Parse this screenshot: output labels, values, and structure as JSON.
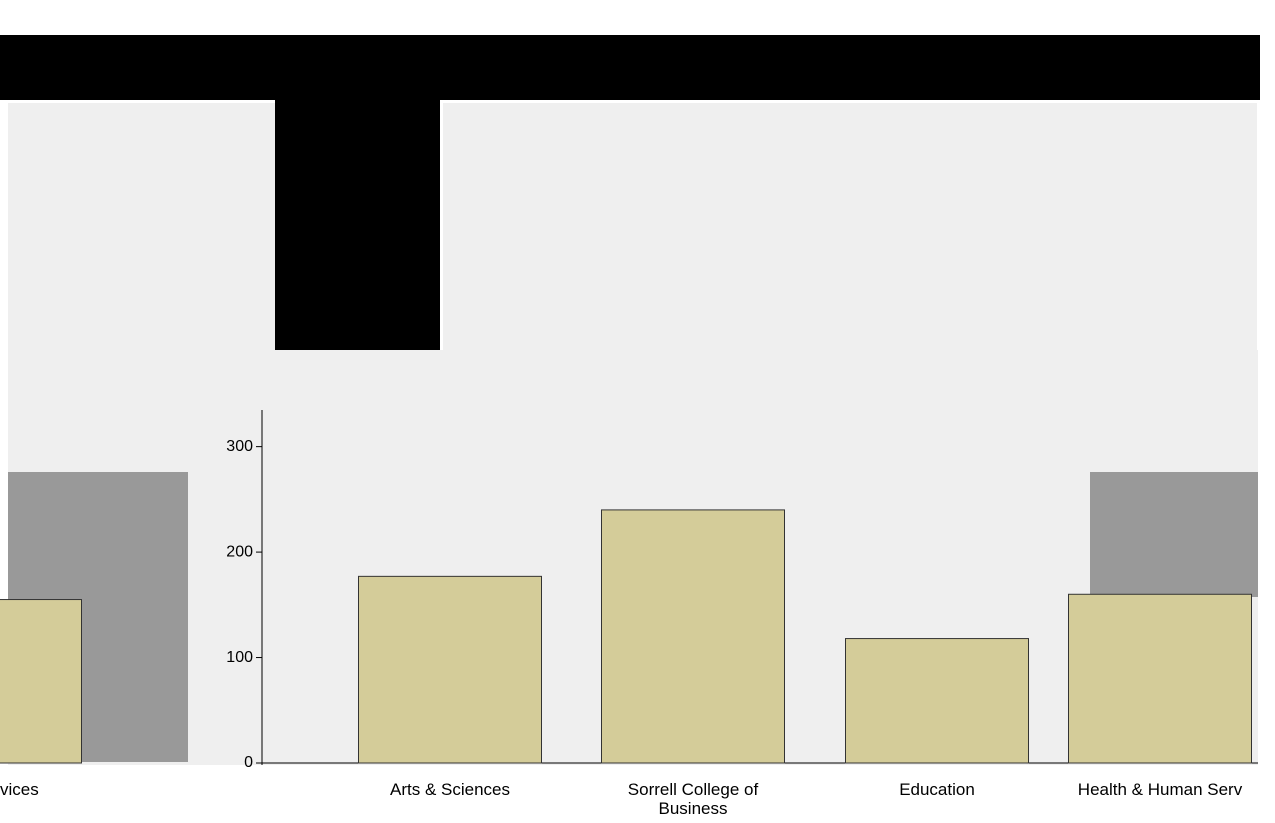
{
  "chart_data": {
    "type": "bar",
    "categories": [
      "vices",
      "Arts & Sciences",
      "Sorrell College of Business",
      "Education",
      "Health & Human Serv"
    ],
    "values": [
      155,
      177,
      240,
      118,
      160
    ],
    "color": "#d4cc99",
    "ylim": [
      0,
      330
    ],
    "yticks": [
      0,
      100,
      200,
      300
    ]
  }
}
